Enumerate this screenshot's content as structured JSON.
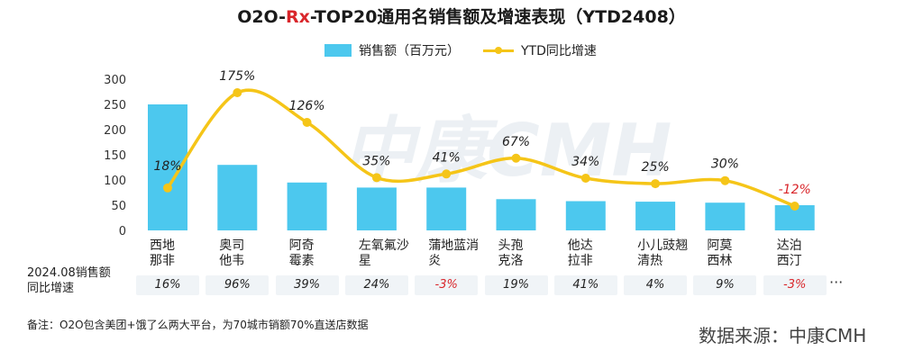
{
  "title_parts": {
    "pre": "O2O-",
    "rx": "Rx",
    "post": "-TOP20通用名销售额及增速表现（YTD2408）"
  },
  "legend": {
    "bar": "销售额（百万元）",
    "line": "YTD同比增速"
  },
  "colors": {
    "bar": "#4cc8ee",
    "line": "#f5c518",
    "negative": "#d9262b"
  },
  "watermark": "中康CMH",
  "chart_data": {
    "type": "bar",
    "categories": [
      [
        "西地",
        "那非"
      ],
      [
        "奥司",
        "他韦"
      ],
      [
        "阿奇",
        "霉素"
      ],
      [
        "左氧氟沙",
        "星"
      ],
      [
        "蒲地蓝消",
        "炎"
      ],
      [
        "头孢",
        "克洛"
      ],
      [
        "他达",
        "拉非"
      ],
      [
        "小儿豉翘",
        "清热"
      ],
      [
        "阿莫",
        "西林"
      ],
      [
        "达泊",
        "西汀"
      ]
    ],
    "yticks": [
      0,
      50,
      100,
      150,
      200,
      250,
      300
    ],
    "ylim": [
      0,
      300
    ],
    "series": [
      {
        "name": "销售额（百万元）",
        "type": "bar",
        "values": [
          250,
          130,
          95,
          85,
          85,
          62,
          58,
          57,
          55,
          50
        ]
      },
      {
        "name": "YTD同比增速",
        "type": "line",
        "values": [
          18,
          175,
          126,
          35,
          41,
          67,
          34,
          25,
          30,
          -12
        ],
        "labels": [
          "18%",
          "175%",
          "126%",
          "35%",
          "41%",
          "67%",
          "34%",
          "25%",
          "30%",
          "-12%"
        ]
      }
    ]
  },
  "table": {
    "row_label_1": "2024.08销售额",
    "row_label_2": "同比增速",
    "values": [
      "16%",
      "96%",
      "39%",
      "24%",
      "-3%",
      "19%",
      "41%",
      "4%",
      "9%",
      "-3%"
    ],
    "more": "···"
  },
  "note": "备注：O2O包含美团+饿了么两大平台，为70城市销额70%直送店数据",
  "source": "数据来源：中康CMH"
}
